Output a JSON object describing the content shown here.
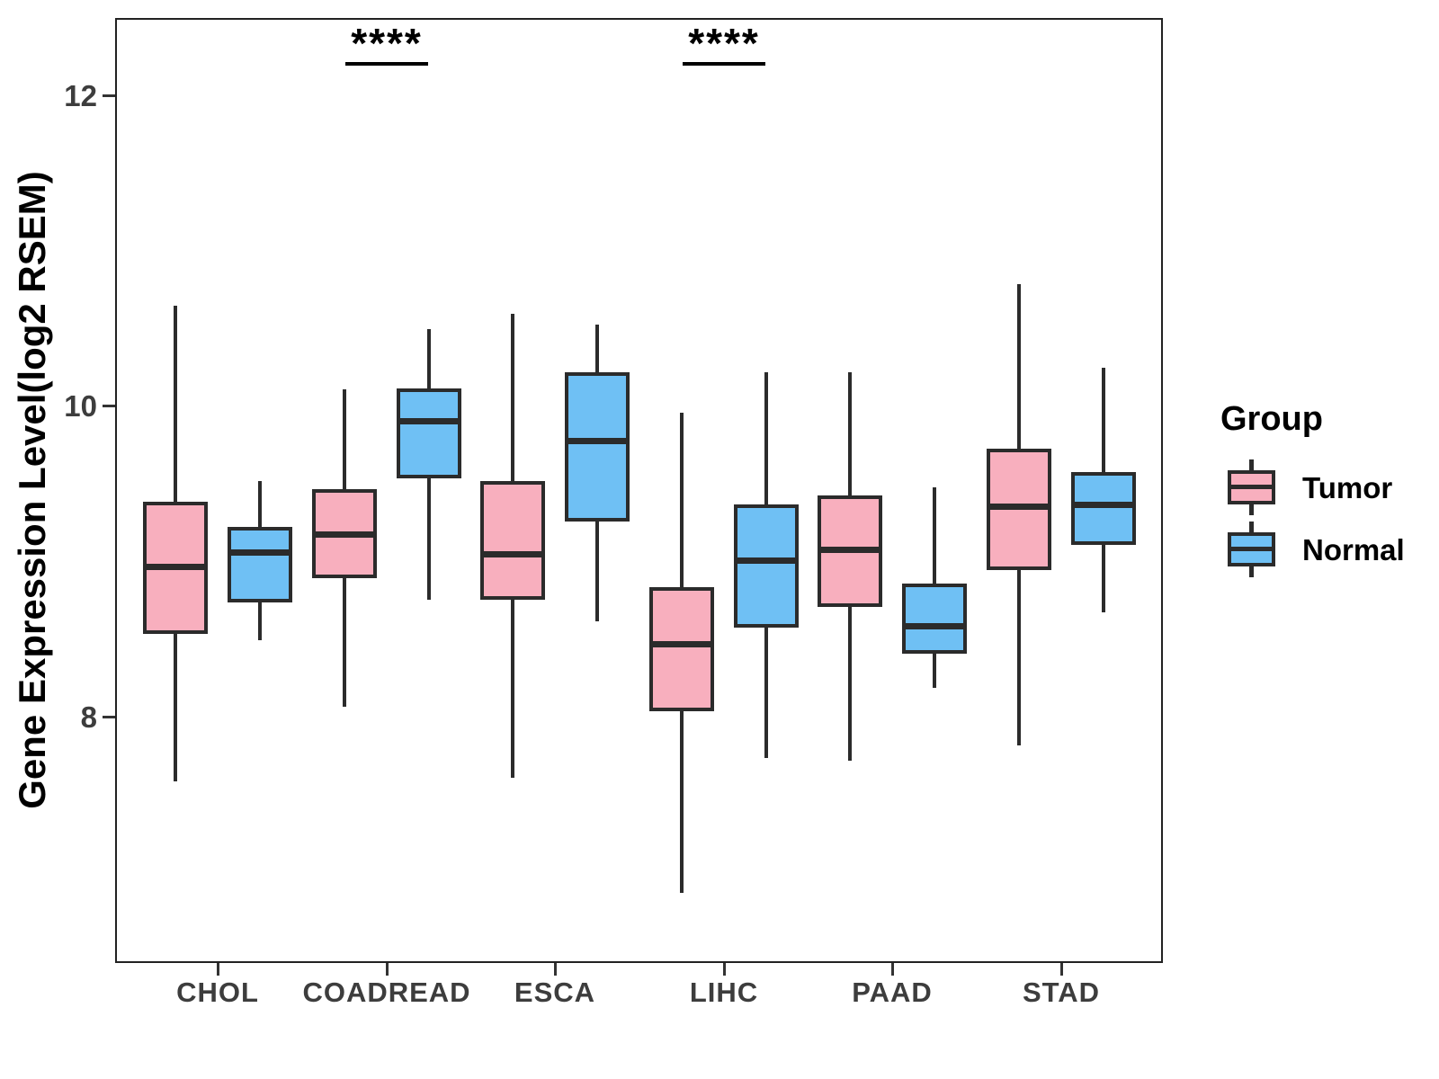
{
  "chart_data": {
    "type": "boxplot",
    "title": "",
    "ylabel": "Gene Expression Level(log2 RSEM)",
    "xlabel": "",
    "categories": [
      "CHOL",
      "COADREAD",
      "ESCA",
      "LIHC",
      "PAAD",
      "STAD"
    ],
    "yticks": [
      12,
      10,
      8
    ],
    "ylim": [
      6.42,
      12.5
    ],
    "grid": false,
    "legend_position": "right",
    "legend_title": "Group",
    "box_stats_order": [
      "whisker_low",
      "q1",
      "median",
      "q3",
      "whisker_high"
    ],
    "series": [
      {
        "name": "Tumor",
        "color": "#F8AFBE",
        "values": [
          [
            7.59,
            8.54,
            8.97,
            9.39,
            10.65
          ],
          [
            8.07,
            8.9,
            9.18,
            9.47,
            10.11
          ],
          [
            7.61,
            8.76,
            9.05,
            9.52,
            10.6
          ],
          [
            6.87,
            8.04,
            8.47,
            8.84,
            9.96
          ],
          [
            7.72,
            8.71,
            9.08,
            9.43,
            10.22
          ],
          [
            7.82,
            8.95,
            9.36,
            9.73,
            10.79
          ]
        ]
      },
      {
        "name": "Normal",
        "color": "#6FC0F4",
        "values": [
          [
            8.5,
            8.74,
            9.06,
            9.23,
            9.52
          ],
          [
            8.76,
            9.54,
            9.91,
            10.12,
            10.5
          ],
          [
            8.62,
            9.26,
            9.78,
            10.22,
            10.53
          ],
          [
            7.74,
            8.58,
            9.01,
            9.37,
            10.22
          ],
          [
            8.19,
            8.41,
            8.59,
            8.86,
            9.48
          ],
          [
            8.68,
            9.11,
            9.37,
            9.58,
            10.25
          ]
        ]
      }
    ],
    "significance": [
      {
        "category": "COADREAD",
        "label": "****"
      },
      {
        "category": "LIHC",
        "label": "****"
      }
    ]
  },
  "colors": {
    "tumor_fill": "#F8AFBE",
    "normal_fill": "#6FC0F4",
    "line": "#2b2b2b",
    "tick_text": "#3d3d3d",
    "background": "#ffffff"
  }
}
